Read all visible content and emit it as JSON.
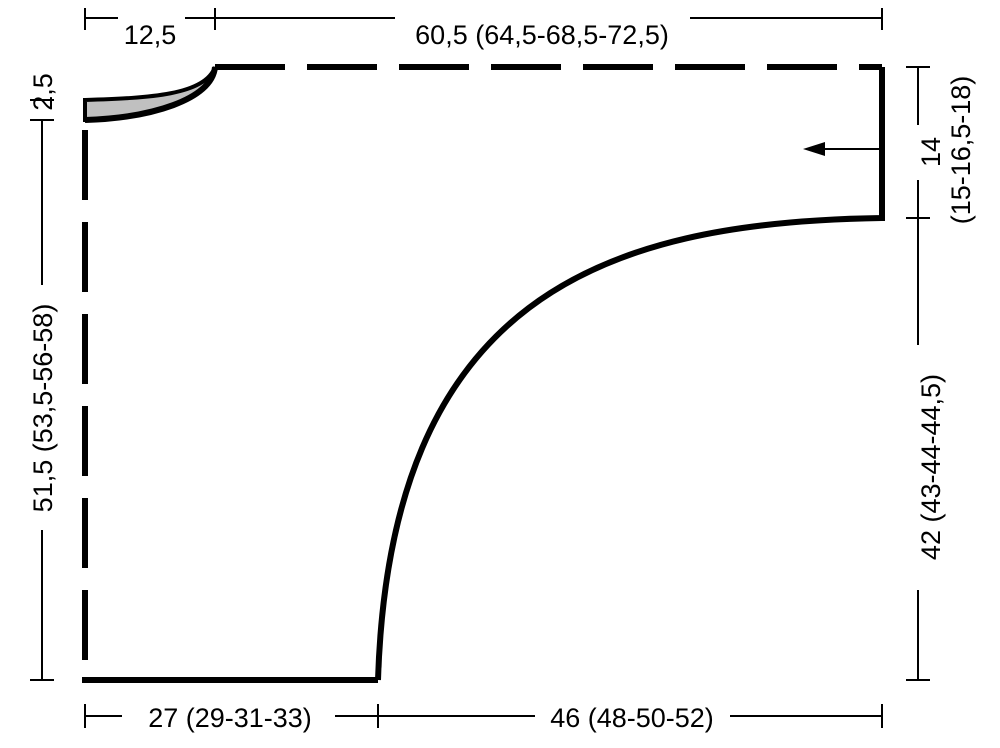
{
  "dimensions": {
    "top_left": "12,5",
    "top_right": "60,5 (64,5-68,5-72,5)",
    "left_small": "2,5",
    "left_main": "51,5 (53,5-56-58)",
    "right_top_line1": "14",
    "right_top_line2": "(15-16,5-18)",
    "right_bottom": "42 (43-44-44,5)",
    "bottom_left": "27 (29-31-33)",
    "bottom_right": "46 (48-50-52)"
  },
  "colors": {
    "outline": "#000000",
    "shaded_neck": "#c0c0c0"
  },
  "icons": {
    "direction_arrow": "arrow-left-icon"
  }
}
